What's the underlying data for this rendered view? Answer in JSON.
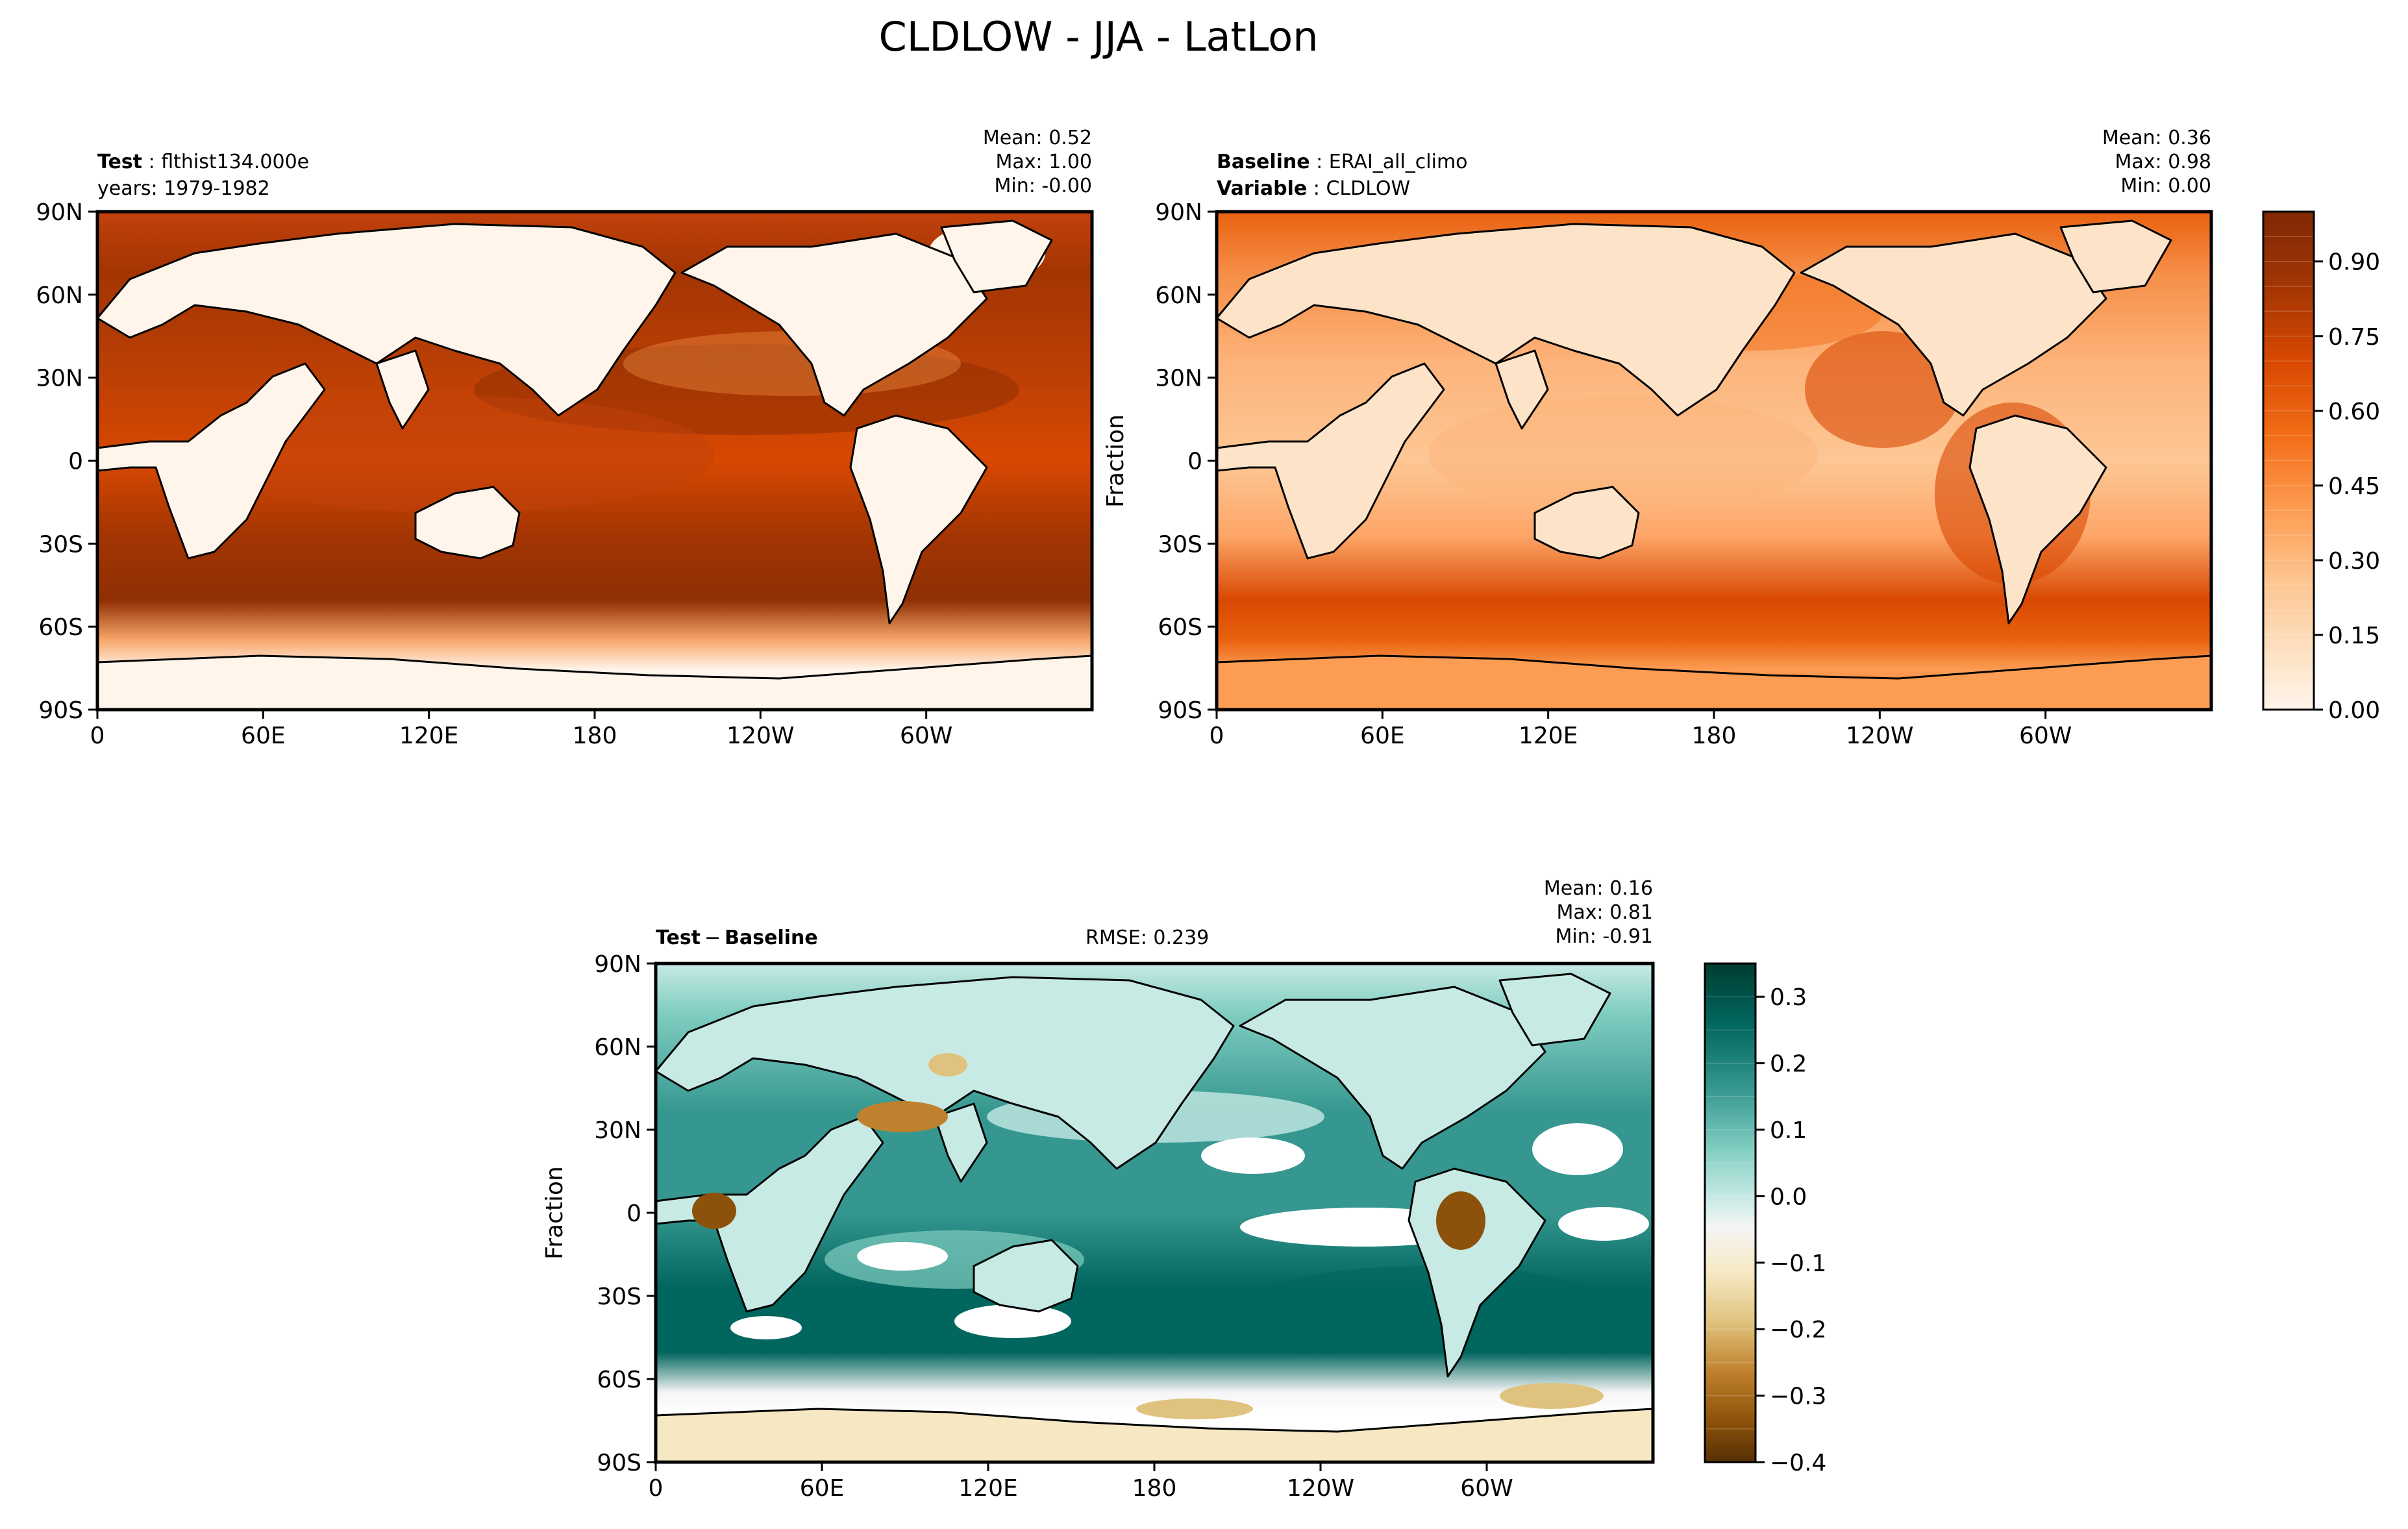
{
  "figure": {
    "title": "CLDLOW - JJA - LatLon"
  },
  "chart_data": [
    {
      "type": "heatmap",
      "panel": "test",
      "header_bold": "Test",
      "header_value": "flthist134.000e",
      "subheader": "years: 1979-1982",
      "stats": [
        "Mean:  0.52",
        "Max:  1.00",
        "Min: -0.00"
      ],
      "xticks": [
        "0",
        "60E",
        "120E",
        "180",
        "120W",
        "60W"
      ],
      "yticks": [
        "90N",
        "60N",
        "30N",
        "0",
        "30S",
        "60S",
        "90S"
      ],
      "ylabel": "",
      "x_range": [
        0,
        360
      ],
      "y_range": [
        -90,
        90
      ],
      "colormap": "Oranges",
      "colors": [
        "#fff5eb",
        "#fde4c8",
        "#fdc794",
        "#fd9d53",
        "#f26d17",
        "#d84801",
        "#a33503",
        "#7f2704"
      ]
    },
    {
      "type": "heatmap",
      "panel": "baseline",
      "header_bold": "Baseline",
      "header_value": "ERAI_all_climo",
      "subheader_bold": "Variable",
      "subheader_value": "CLDLOW",
      "stats": [
        "Mean:  0.36",
        "Max:  0.98",
        "Min:  0.00"
      ],
      "xticks": [
        "0",
        "60E",
        "120E",
        "180",
        "120W",
        "60W"
      ],
      "yticks": [
        "90N",
        "60N",
        "30N",
        "0",
        "30S",
        "60S",
        "90S"
      ],
      "ylabel": "Fraction",
      "x_range": [
        0,
        360
      ],
      "y_range": [
        -90,
        90
      ],
      "colorbar": {
        "ticks": [
          "0.00",
          "0.15",
          "0.30",
          "0.45",
          "0.60",
          "0.75",
          "0.90"
        ],
        "tick_values": [
          0,
          0.15,
          0.3,
          0.45,
          0.6,
          0.75,
          0.9
        ],
        "range": [
          0,
          1.0
        ],
        "levels": 20
      }
    },
    {
      "type": "heatmap",
      "panel": "difference",
      "header_bold": "Test",
      "header_op": "−",
      "header_bold2": "Baseline",
      "rmse": "RMSE: 0.239",
      "stats": [
        "Mean:  0.16",
        "Max:  0.81",
        "Min: -0.91"
      ],
      "xticks": [
        "0",
        "60E",
        "120E",
        "180",
        "120W",
        "60W"
      ],
      "yticks": [
        "90N",
        "60N",
        "30N",
        "0",
        "30S",
        "60S",
        "90S"
      ],
      "ylabel": "Fraction",
      "x_range": [
        0,
        360
      ],
      "y_range": [
        -90,
        90
      ],
      "colormap": "BrBG",
      "colors": [
        "#543005",
        "#8c510a",
        "#bf812d",
        "#dfc27d",
        "#f6e8c3",
        "#f5f5f5",
        "#c7eae5",
        "#80cdc1",
        "#35978f",
        "#01665e",
        "#003c30"
      ],
      "colorbar": {
        "ticks": [
          "0.3",
          "0.2",
          "0.1",
          "0.0",
          "−0.1",
          "−0.2",
          "−0.3",
          "−0.4"
        ],
        "tick_values": [
          0.3,
          0.2,
          0.1,
          0.0,
          -0.1,
          -0.2,
          -0.3,
          -0.4
        ],
        "range": [
          -0.4,
          0.35
        ],
        "levels": 15
      }
    }
  ]
}
